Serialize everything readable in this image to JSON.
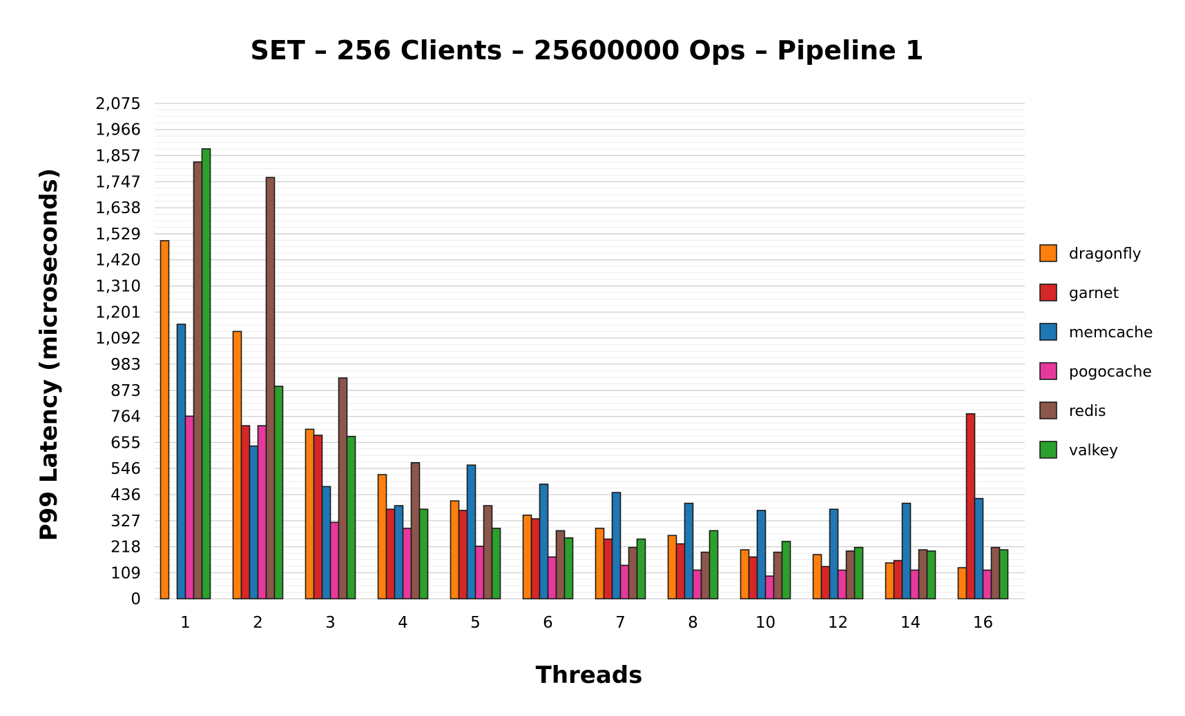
{
  "chart_data": {
    "type": "bar",
    "title": "SET – 256 Clients – 25600000 Ops – Pipeline 1",
    "xlabel": "Threads",
    "ylabel": "P99 Latency (microseconds)",
    "ylim": [
      0,
      2075
    ],
    "yticks": [
      "0",
      "109",
      "218",
      "327",
      "436",
      "546",
      "655",
      "764",
      "873",
      "983",
      "1,092",
      "1,201",
      "1,310",
      "1,420",
      "1,529",
      "1,638",
      "1,747",
      "1,857",
      "1,966",
      "2,075"
    ],
    "ytick_values": [
      0,
      109,
      218,
      327,
      436,
      546,
      655,
      764,
      873,
      983,
      1092,
      1201,
      1310,
      1420,
      1529,
      1638,
      1747,
      1857,
      1966,
      2075
    ],
    "grid": true,
    "legend_position": "right",
    "categories": [
      "1",
      "2",
      "3",
      "4",
      "5",
      "6",
      "7",
      "8",
      "10",
      "12",
      "14",
      "16"
    ],
    "series": [
      {
        "name": "dragonfly",
        "color": "#ff7f0e",
        "values": [
          1500,
          1120,
          710,
          520,
          410,
          350,
          295,
          265,
          205,
          185,
          150,
          130
        ]
      },
      {
        "name": "garnet",
        "color": "#d62728",
        "values": [
          0,
          725,
          685,
          375,
          370,
          335,
          250,
          230,
          175,
          135,
          160,
          775
        ]
      },
      {
        "name": "memcache",
        "color": "#1f77b4",
        "values": [
          1150,
          640,
          470,
          390,
          560,
          480,
          445,
          400,
          370,
          375,
          400,
          420
        ]
      },
      {
        "name": "pogocache",
        "color": "#e6399b",
        "values": [
          765,
          725,
          320,
          295,
          220,
          175,
          140,
          120,
          95,
          120,
          120,
          120
        ]
      },
      {
        "name": "redis",
        "color": "#8c564b",
        "values": [
          1830,
          1765,
          925,
          570,
          390,
          285,
          215,
          195,
          195,
          200,
          205,
          215
        ]
      },
      {
        "name": "valkey",
        "color": "#2ca02c",
        "values": [
          1885,
          890,
          680,
          375,
          295,
          255,
          250,
          285,
          240,
          215,
          200,
          205
        ]
      }
    ]
  }
}
